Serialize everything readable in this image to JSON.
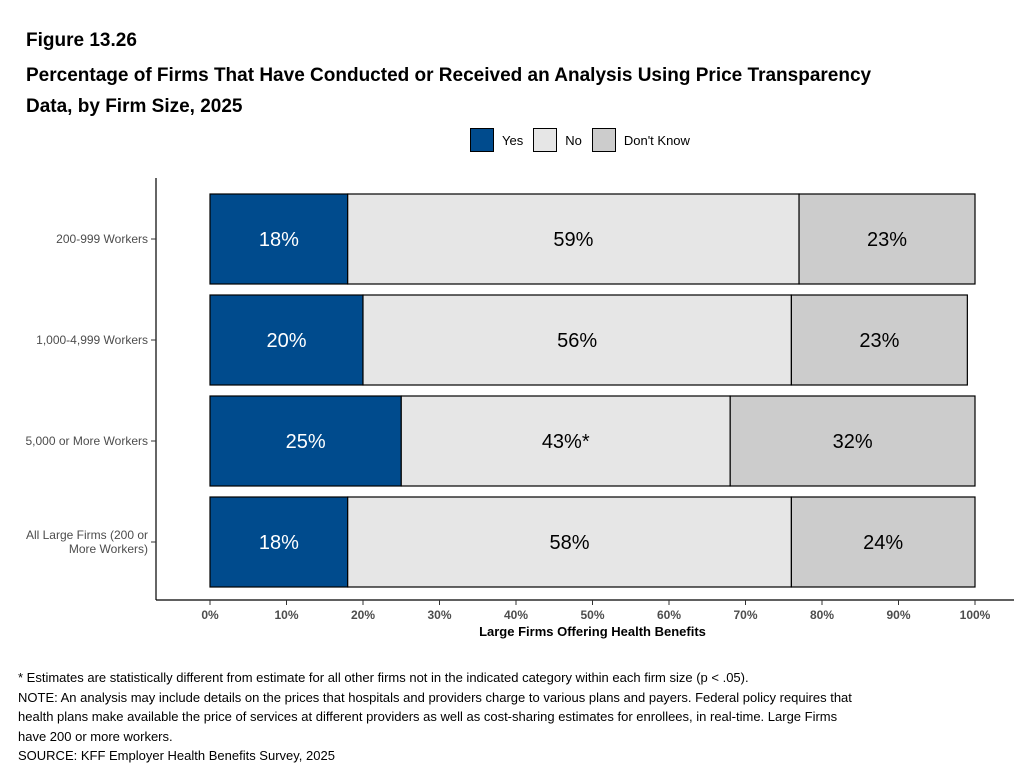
{
  "figure_label": "Figure 13.26",
  "title_line1": "Percentage of Firms That Have Conducted or Received an Analysis Using Price Transparency",
  "title_line2": "Data, by Firm Size, 2025",
  "colors": {
    "yes": "#004b8d",
    "no": "#e6e6e6",
    "dont_know": "#cccccc"
  },
  "chart_data": {
    "type": "bar",
    "orientation": "horizontal",
    "stacked": true,
    "categories": [
      [
        "200-999 Workers"
      ],
      [
        "1,000-4,999 Workers"
      ],
      [
        "5,000 or More Workers"
      ],
      [
        "All Large Firms (200 or",
        "More Workers)"
      ]
    ],
    "series": [
      {
        "name": "Yes",
        "values": [
          18,
          20,
          25,
          18
        ],
        "labels": [
          "18%",
          "20%",
          "25%",
          "18%"
        ]
      },
      {
        "name": "No",
        "values": [
          59,
          56,
          43,
          58
        ],
        "labels": [
          "59%",
          "56%",
          "43%*",
          "58%"
        ]
      },
      {
        "name": "Don't Know",
        "values": [
          23,
          23,
          32,
          24
        ],
        "labels": [
          "23%",
          "23%",
          "32%",
          "24%"
        ]
      }
    ],
    "xlabel": "Large Firms Offering Health Benefits",
    "xlim": [
      0,
      100
    ],
    "xticks": [
      0,
      10,
      20,
      30,
      40,
      50,
      60,
      70,
      80,
      90,
      100
    ],
    "xtick_labels": [
      "0%",
      "10%",
      "20%",
      "30%",
      "40%",
      "50%",
      "60%",
      "70%",
      "80%",
      "90%",
      "100%"
    ],
    "legend_position": "top",
    "grid": false
  },
  "notes": {
    "footnote": "* Estimates are statistically different from estimate for all other firms not in the indicated category within each firm size (p < .05).",
    "note_line1": "NOTE: An analysis may include details on the prices that hospitals and providers charge to various plans and payers. Federal policy requires that",
    "note_line2": "health plans make available the price of services at different providers as well as cost-sharing estimates for enrollees, in real-time. Large Firms",
    "note_line3": "have 200 or more workers.",
    "source": "SOURCE: KFF Employer Health Benefits Survey, 2025"
  }
}
